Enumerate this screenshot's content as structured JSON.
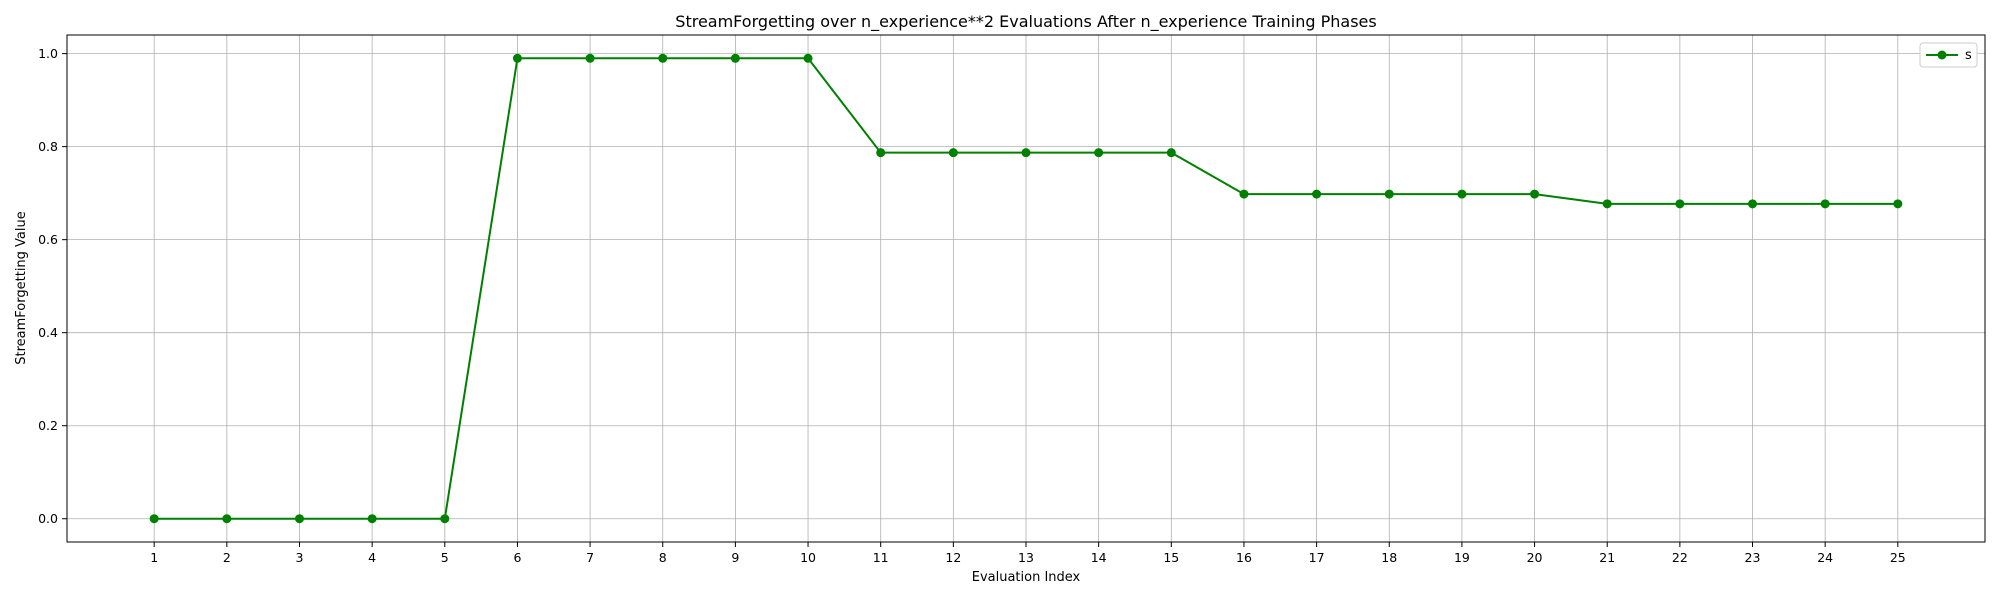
{
  "chart_data": {
    "type": "line",
    "title": "StreamForgetting over n_experience**2 Evaluations After n_experience Training Phases",
    "xlabel": "Evaluation Index",
    "ylabel": "StreamForgetting Value",
    "categories": [
      "1",
      "2",
      "3",
      "4",
      "5",
      "6",
      "7",
      "8",
      "9",
      "10",
      "11",
      "12",
      "13",
      "14",
      "15",
      "16",
      "17",
      "18",
      "19",
      "20",
      "21",
      "22",
      "23",
      "24",
      "25"
    ],
    "series": [
      {
        "name": "s",
        "color": "#008000",
        "marker": "circle",
        "values": [
          0.0,
          0.0,
          0.0,
          0.0,
          0.0,
          0.99,
          0.99,
          0.99,
          0.99,
          0.99,
          0.787,
          0.787,
          0.787,
          0.787,
          0.787,
          0.698,
          0.698,
          0.698,
          0.698,
          0.698,
          0.677,
          0.677,
          0.677,
          0.677,
          0.677
        ]
      }
    ],
    "xlim": [
      -0.2,
      26.2
    ],
    "ylim": [
      -0.05,
      1.04
    ],
    "yticks": [
      "0.0",
      "0.2",
      "0.4",
      "0.6",
      "0.8",
      "1.0"
    ],
    "grid": true,
    "legend_position": "top-right"
  }
}
